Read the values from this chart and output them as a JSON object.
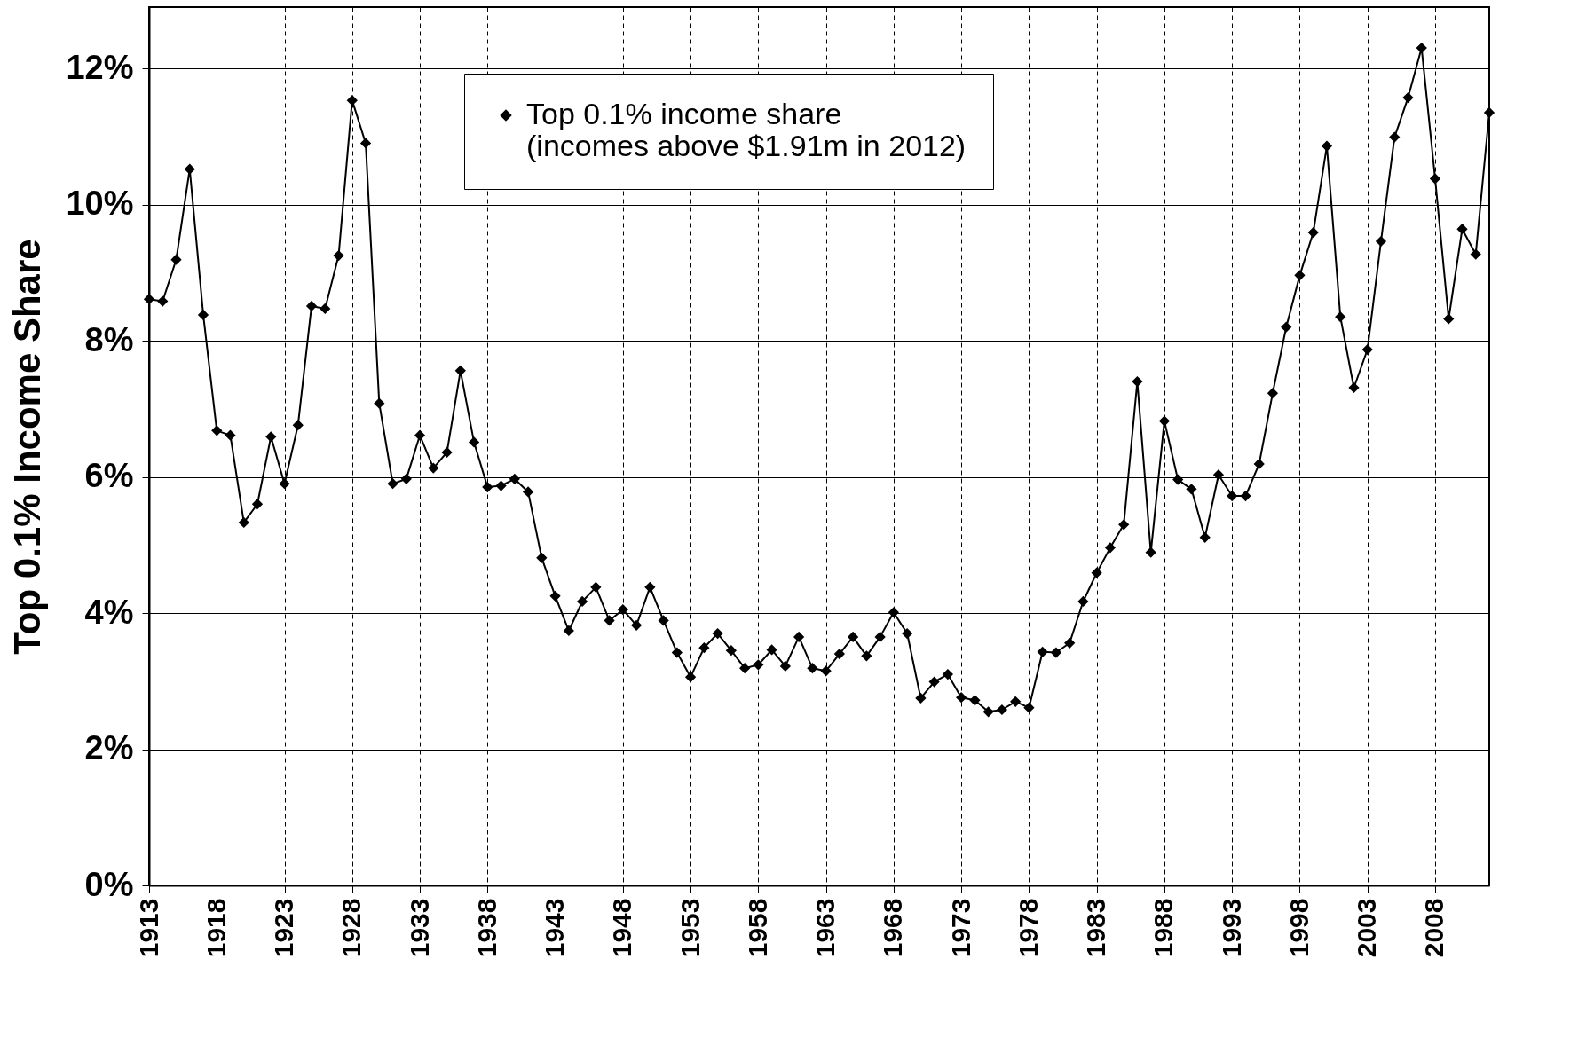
{
  "chart_data": {
    "type": "line",
    "ylabel": "Top 0.1% Income Share",
    "marker": "diamond",
    "grid": true,
    "legend": "top",
    "xlim": [
      1913,
      2012
    ],
    "xticks": [
      1913,
      1918,
      1923,
      1928,
      1933,
      1938,
      1943,
      1948,
      1953,
      1958,
      1963,
      1968,
      1973,
      1978,
      1983,
      1988,
      1993,
      1998,
      2003,
      2008
    ],
    "ylim": [
      0,
      12.9
    ],
    "yticks": [
      {
        "value": 0,
        "label": "0%"
      },
      {
        "value": 2,
        "label": "2%"
      },
      {
        "value": 4,
        "label": "4%"
      },
      {
        "value": 6,
        "label": "6%"
      },
      {
        "value": 8,
        "label": "8%"
      },
      {
        "value": 10,
        "label": "10%"
      },
      {
        "value": 12,
        "label": "12%"
      }
    ],
    "x": [
      1913,
      1914,
      1915,
      1916,
      1917,
      1918,
      1919,
      1920,
      1921,
      1922,
      1923,
      1924,
      1925,
      1926,
      1927,
      1928,
      1929,
      1930,
      1931,
      1932,
      1933,
      1934,
      1935,
      1936,
      1937,
      1938,
      1939,
      1940,
      1941,
      1942,
      1943,
      1944,
      1945,
      1946,
      1947,
      1948,
      1949,
      1950,
      1951,
      1952,
      1953,
      1954,
      1955,
      1956,
      1957,
      1958,
      1959,
      1960,
      1961,
      1962,
      1963,
      1964,
      1965,
      1966,
      1967,
      1968,
      1969,
      1970,
      1971,
      1972,
      1973,
      1974,
      1975,
      1976,
      1977,
      1978,
      1979,
      1980,
      1981,
      1982,
      1983,
      1984,
      1985,
      1986,
      1987,
      1988,
      1989,
      1990,
      1991,
      1992,
      1993,
      1994,
      1995,
      1996,
      1997,
      1998,
      1999,
      2000,
      2001,
      2002,
      2003,
      2004,
      2005,
      2006,
      2007,
      2008,
      2009,
      2010,
      2011,
      2012
    ],
    "series": [
      {
        "name": "Top 0.1% income share\n(incomes above $1.91m in 2012)",
        "color": "#000000",
        "values": [
          8.61,
          8.58,
          9.19,
          10.52,
          8.38,
          6.68,
          6.61,
          5.33,
          5.6,
          6.59,
          5.9,
          6.76,
          8.51,
          8.47,
          9.25,
          11.53,
          10.9,
          7.08,
          5.9,
          5.97,
          6.61,
          6.13,
          6.36,
          7.56,
          6.51,
          5.85,
          5.87,
          5.97,
          5.78,
          4.81,
          4.25,
          3.74,
          4.17,
          4.38,
          3.89,
          4.05,
          3.82,
          4.38,
          3.89,
          3.42,
          3.06,
          3.49,
          3.7,
          3.45,
          3.19,
          3.24,
          3.46,
          3.22,
          3.65,
          3.19,
          3.15,
          3.4,
          3.65,
          3.37,
          3.65,
          4.01,
          3.7,
          2.75,
          2.99,
          3.1,
          2.76,
          2.72,
          2.55,
          2.58,
          2.7,
          2.61,
          3.43,
          3.42,
          3.56,
          4.17,
          4.59,
          4.96,
          5.3,
          7.4,
          4.89,
          6.82,
          5.96,
          5.82,
          5.11,
          6.03,
          5.72,
          5.72,
          6.19,
          7.23,
          8.2,
          8.96,
          9.59,
          10.86,
          8.35,
          7.31,
          7.87,
          9.46,
          10.99,
          11.57,
          12.3,
          10.38,
          8.32,
          9.64,
          9.27,
          11.35
        ]
      }
    ]
  }
}
